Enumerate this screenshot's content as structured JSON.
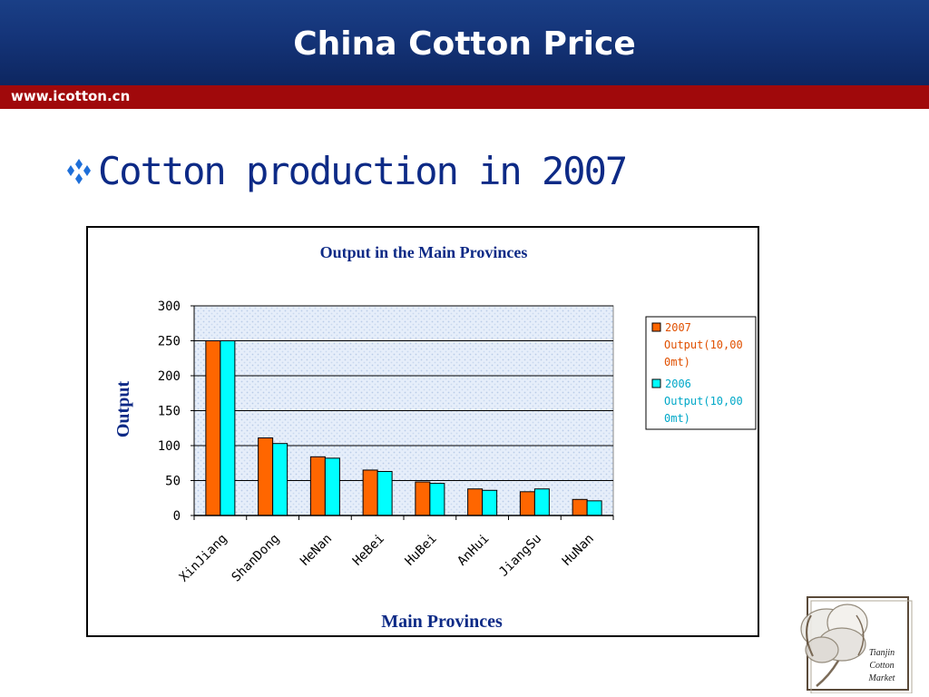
{
  "header": {
    "title": "China Cotton Price",
    "site_url": "www.icotton.cn"
  },
  "slide": {
    "bullet_icon": "four-diamond-bullet",
    "heading": "Cotton production in 2007"
  },
  "logo": {
    "icon": "cotton-boll-icon",
    "lines": [
      "Tianjin",
      "Cotton",
      "Market"
    ]
  },
  "colors": {
    "header_blue": "#15357a",
    "red_bar": "#a0090b",
    "heading_blue": "#0d2a86",
    "series_2007": "#ff6600",
    "series_2006": "#00ffff",
    "chart_text": "#0d2a86"
  },
  "chart_data": {
    "type": "bar",
    "title": "Output in the Main Provinces",
    "xlabel": "Main Provinces",
    "ylabel": "Output",
    "categories": [
      "XinJiang",
      "ShanDong",
      "HeNan",
      "HeBei",
      "HuBei",
      "AnHui",
      "JiangSu",
      "HuNan"
    ],
    "series": [
      {
        "name": "2007 Output(10,000mt)",
        "legend_lines": [
          "2007",
          "Output(10,00",
          "0mt)"
        ],
        "color": "#ff6600",
        "values": [
          250,
          111,
          84,
          65,
          48,
          38,
          34,
          23
        ]
      },
      {
        "name": "2006 Output(10,000mt)",
        "legend_lines": [
          "2006",
          "Output(10,00",
          "0mt)"
        ],
        "color": "#00ffff",
        "values": [
          250,
          103,
          82,
          63,
          46,
          36,
          38,
          21
        ]
      }
    ],
    "ylim": [
      0,
      300
    ],
    "yticks": [
      0,
      50,
      100,
      150,
      200,
      250,
      300
    ],
    "grid": true,
    "legend_position": "right"
  }
}
